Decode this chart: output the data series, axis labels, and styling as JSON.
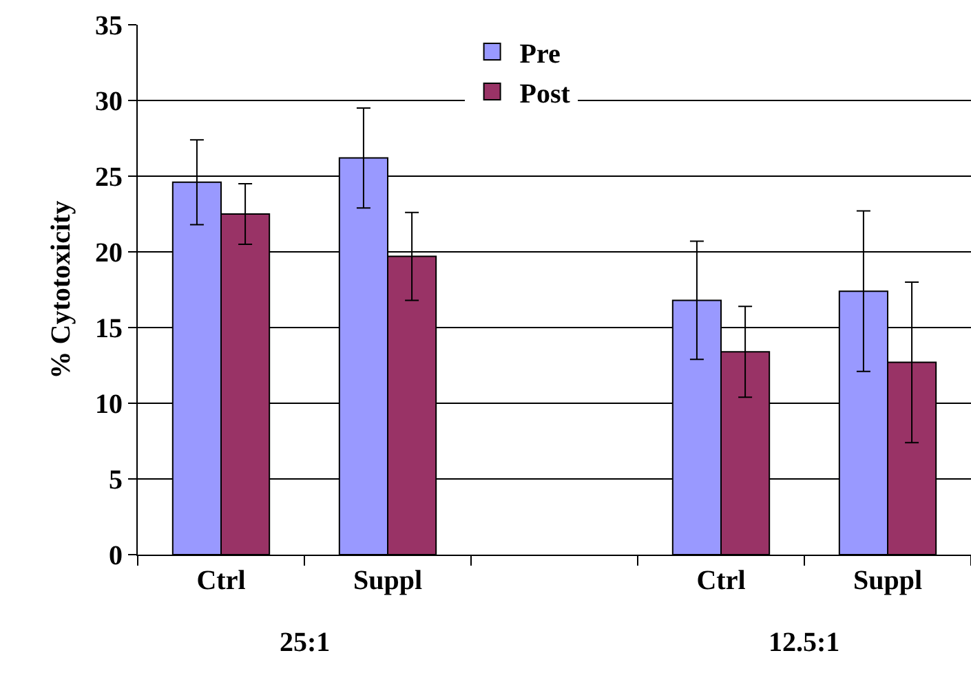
{
  "chart_data": {
    "type": "bar",
    "ylabel": "% Cytotoxicity",
    "categories": [
      "Ctrl",
      "Suppl",
      null,
      "Ctrl",
      "Suppl"
    ],
    "series": [
      {
        "name": "Pre",
        "color": "#9999ff",
        "values": [
          24.6,
          26.2,
          null,
          16.8,
          17.4
        ],
        "errors": [
          2.8,
          3.3,
          null,
          3.9,
          5.3
        ]
      },
      {
        "name": "Post",
        "color": "#993366",
        "values": [
          22.5,
          19.7,
          null,
          13.4,
          12.7
        ],
        "errors": [
          2.0,
          2.9,
          null,
          3.0,
          5.3
        ]
      }
    ],
    "ylim": [
      0,
      35
    ],
    "yticks": [
      0,
      5,
      10,
      15,
      20,
      25,
      30,
      35
    ],
    "grid": "y",
    "legend": "top",
    "annotations": [
      "25:1",
      "12.5:1"
    ]
  }
}
